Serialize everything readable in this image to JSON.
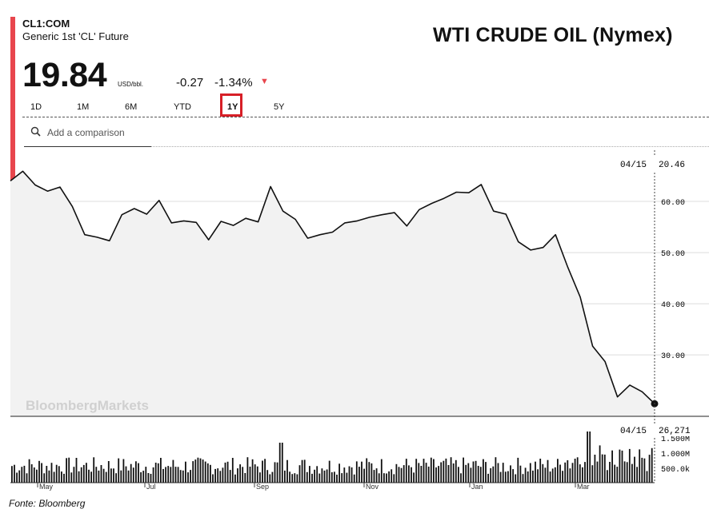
{
  "header": {
    "ticker": "CL1:COM",
    "instrument": "Generic 1st 'CL' Future",
    "headline": "WTI CRUDE OIL (Nymex)",
    "price": "19.84",
    "unit": "USD/bbl.",
    "change": "-0.27",
    "change_pct": "-1.34%",
    "arrow": "▼"
  },
  "tabs": [
    "1D",
    "1M",
    "6M",
    "YTD",
    "1Y",
    "5Y"
  ],
  "active_tab": "1Y",
  "search": {
    "placeholder": "Add a comparison"
  },
  "watermark": "BloombergMarkets",
  "source": "Fonte: Bloomberg",
  "colors": {
    "accent": "#e8464d",
    "highlight_box": "#d71f27",
    "line": "#111111",
    "area": "#f2f2f2"
  },
  "chart_data": {
    "type": "line",
    "title": "WTI CRUDE OIL (Nymex)",
    "last_date": "04/15",
    "last_value": "20.46",
    "ylim": [
      18,
      70
    ],
    "y_ticks": [
      "60.00",
      "50.00",
      "40.00",
      "30.00"
    ],
    "x_ticks": [
      "May",
      "Jul",
      "Sep",
      "Nov",
      "Jan",
      "Mar"
    ],
    "x": [
      "2019-04-15",
      "2019-04-22",
      "2019-04-29",
      "2019-05-06",
      "2019-05-13",
      "2019-05-20",
      "2019-05-27",
      "2019-06-03",
      "2019-06-10",
      "2019-06-17",
      "2019-06-24",
      "2019-07-01",
      "2019-07-08",
      "2019-07-15",
      "2019-07-22",
      "2019-07-29",
      "2019-08-05",
      "2019-08-12",
      "2019-08-19",
      "2019-08-26",
      "2019-09-02",
      "2019-09-09",
      "2019-09-16",
      "2019-09-23",
      "2019-09-30",
      "2019-10-07",
      "2019-10-14",
      "2019-10-21",
      "2019-10-28",
      "2019-11-04",
      "2019-11-11",
      "2019-11-18",
      "2019-11-25",
      "2019-12-02",
      "2019-12-09",
      "2019-12-16",
      "2019-12-23",
      "2019-12-30",
      "2020-01-06",
      "2020-01-13",
      "2020-01-20",
      "2020-01-27",
      "2020-02-03",
      "2020-02-10",
      "2020-02-17",
      "2020-02-24",
      "2020-03-02",
      "2020-03-09",
      "2020-03-16",
      "2020-03-23",
      "2020-03-30",
      "2020-04-06",
      "2020-04-15"
    ],
    "values": [
      64.0,
      65.9,
      63.2,
      62.0,
      62.8,
      59.0,
      53.5,
      53.0,
      52.3,
      57.4,
      58.6,
      57.5,
      60.2,
      55.8,
      56.2,
      55.9,
      52.5,
      56.1,
      55.3,
      56.7,
      56.0,
      62.9,
      58.1,
      56.5,
      52.8,
      53.5,
      54.0,
      55.8,
      56.2,
      56.9,
      57.4,
      57.8,
      55.2,
      58.4,
      59.6,
      60.6,
      61.8,
      61.7,
      63.3,
      58.1,
      57.5,
      52.1,
      50.5,
      51.0,
      53.5,
      47.1,
      41.3,
      31.7,
      28.7,
      21.8,
      24.1,
      22.8,
      20.46
    ],
    "volume": {
      "last_date": "04/15",
      "last_value": "26,271",
      "y_ticks": [
        "1.500M",
        "1.000M",
        "500.0k"
      ]
    }
  }
}
